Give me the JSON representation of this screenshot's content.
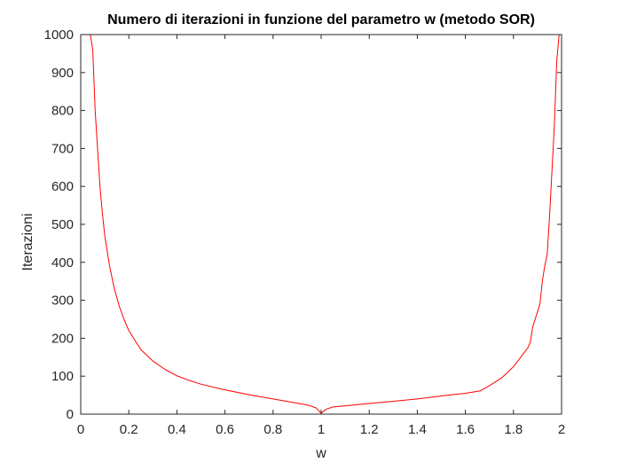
{
  "chart_data": {
    "type": "line",
    "title": "Numero di iterazioni in funzione del parametro w (metodo SOR)",
    "xlabel": "w",
    "ylabel": "Iterazioni",
    "xlim": [
      0,
      2
    ],
    "ylim": [
      0,
      1000
    ],
    "xticks": [
      0,
      0.2,
      0.4,
      0.6,
      0.8,
      1,
      1.2,
      1.4,
      1.6,
      1.8,
      2
    ],
    "xtick_labels": [
      "0",
      "0.2",
      "0.4",
      "0.6",
      "0.8",
      "1",
      "1.2",
      "1.4",
      "1.6",
      "1.8",
      "2"
    ],
    "yticks": [
      0,
      100,
      200,
      300,
      400,
      500,
      600,
      700,
      800,
      900,
      1000
    ],
    "ytick_labels": [
      "0",
      "100",
      "200",
      "300",
      "400",
      "500",
      "600",
      "700",
      "800",
      "900",
      "1000"
    ],
    "grid": false,
    "box": true,
    "series": [
      {
        "color": "#ff0000",
        "x": [
          0.04,
          0.05,
          0.06,
          0.07,
          0.08,
          0.09,
          0.1,
          0.12,
          0.14,
          0.16,
          0.18,
          0.2,
          0.25,
          0.3,
          0.35,
          0.4,
          0.45,
          0.5,
          0.6,
          0.7,
          0.8,
          0.9,
          0.95,
          0.98,
          1.0,
          1.02,
          1.05,
          1.1,
          1.2,
          1.3,
          1.4,
          1.5,
          1.6,
          1.66,
          1.7,
          1.75,
          1.8,
          1.83,
          1.86,
          1.87,
          1.88,
          1.89,
          1.9,
          1.91,
          1.92,
          1.93,
          1.94,
          1.95,
          1.96,
          1.97,
          1.98,
          1.99
        ],
        "y": [
          1000,
          960,
          800,
          700,
          600,
          530,
          470,
          390,
          330,
          285,
          250,
          220,
          170,
          140,
          118,
          101,
          89,
          79,
          64,
          51,
          40,
          29,
          23,
          16,
          2,
          13,
          19,
          22,
          28,
          34,
          40,
          48,
          55,
          61,
          75,
          95,
          125,
          150,
          175,
          190,
          230,
          250,
          270,
          290,
          350,
          390,
          420,
          520,
          640,
          760,
          930,
          1000
        ]
      }
    ]
  }
}
